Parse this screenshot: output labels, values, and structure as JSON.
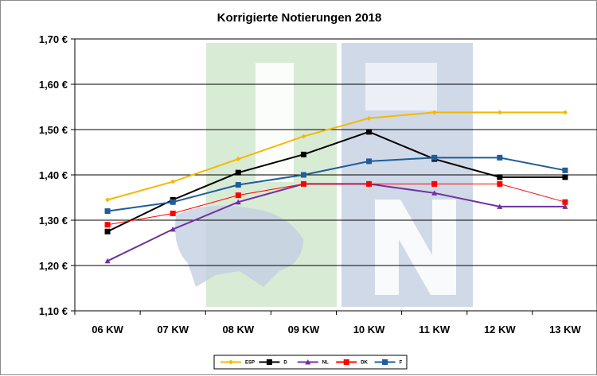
{
  "chart_data": {
    "type": "line",
    "title": "Korrigierte Notierungen 2018",
    "xlabel": "",
    "ylabel": "",
    "categories": [
      "06 KW",
      "07 KW",
      "08 KW",
      "09 KW",
      "10 KW",
      "11 KW",
      "12 KW",
      "13 KW"
    ],
    "ylim": [
      1.1,
      1.7
    ],
    "yticks": [
      1.1,
      1.2,
      1.3,
      1.4,
      1.5,
      1.6,
      1.7
    ],
    "ytick_labels": [
      "1,10 €",
      "1,20 €",
      "1,30 €",
      "1,40 €",
      "1,50 €",
      "1,60 €",
      "1,70 €"
    ],
    "grid": "horizontal",
    "legend_position": "bottom",
    "series": [
      {
        "name": "ESP",
        "color": "#F5B800",
        "marker": "diamond",
        "values": [
          1.345,
          1.385,
          1.435,
          1.485,
          1.525,
          1.538,
          1.538,
          1.538
        ]
      },
      {
        "name": "D",
        "color": "#000000",
        "marker": "square",
        "values": [
          1.275,
          1.345,
          1.405,
          1.445,
          1.495,
          1.435,
          1.395,
          1.395
        ]
      },
      {
        "name": "NL",
        "color": "#7030A0",
        "marker": "triangle",
        "values": [
          1.21,
          1.28,
          1.34,
          1.38,
          1.38,
          1.36,
          1.33,
          1.33
        ]
      },
      {
        "name": "DK",
        "color": "#FF0000",
        "marker": "square",
        "values": [
          1.29,
          1.315,
          1.355,
          1.38,
          1.38,
          1.38,
          1.38,
          1.34
        ]
      },
      {
        "name": "F",
        "color": "#1F5C99",
        "marker": "square",
        "values": [
          1.32,
          1.34,
          1.378,
          1.4,
          1.43,
          1.438,
          1.438,
          1.41
        ]
      }
    ]
  },
  "watermark": {
    "description_colors": [
      "#d5e9d2",
      "#c9d3e4"
    ]
  }
}
